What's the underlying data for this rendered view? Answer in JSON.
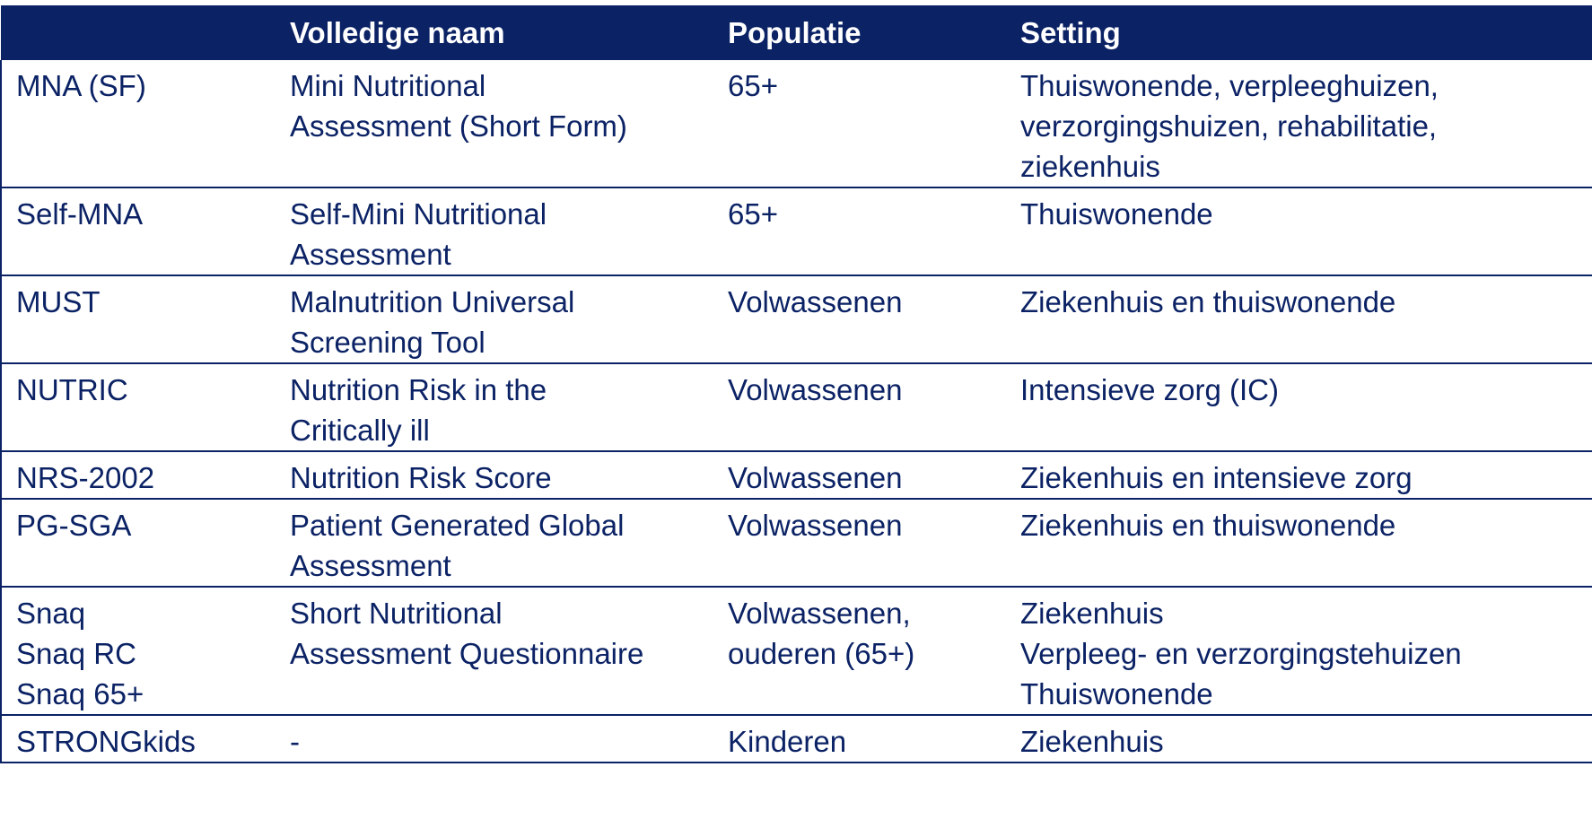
{
  "table": {
    "headers": [
      "",
      "Volledige naam",
      "Populatie",
      "Setting"
    ],
    "rows": [
      {
        "abbr": [
          "MNA (SF)"
        ],
        "name": [
          "Mini Nutritional",
          "Assessment (Short Form)"
        ],
        "population": [
          "65+"
        ],
        "setting": [
          "Thuiswonende, verpleeghuizen,",
          "verzorgingshuizen, rehabilitatie,",
          "ziekenhuis"
        ]
      },
      {
        "abbr": [
          "Self-MNA"
        ],
        "name": [
          "Self-Mini Nutritional",
          "Assessment"
        ],
        "population": [
          "65+"
        ],
        "setting": [
          "Thuiswonende"
        ]
      },
      {
        "abbr": [
          "MUST"
        ],
        "name": [
          "Malnutrition Universal",
          "Screening Tool"
        ],
        "population": [
          "Volwassenen"
        ],
        "setting": [
          "Ziekenhuis en thuiswonende"
        ]
      },
      {
        "abbr": [
          "NUTRIC"
        ],
        "name": [
          "Nutrition Risk in the",
          "Critically ill"
        ],
        "population": [
          "Volwassenen"
        ],
        "setting": [
          "Intensieve zorg (IC)"
        ]
      },
      {
        "abbr": [
          "NRS-2002"
        ],
        "name": [
          "Nutrition Risk Score"
        ],
        "population": [
          "Volwassenen"
        ],
        "setting": [
          "Ziekenhuis en intensieve zorg"
        ]
      },
      {
        "abbr": [
          "PG-SGA"
        ],
        "name": [
          "Patient Generated Global",
          "Assessment"
        ],
        "population": [
          "Volwassenen"
        ],
        "setting": [
          "Ziekenhuis en thuiswonende"
        ]
      },
      {
        "abbr": [
          "Snaq",
          "Snaq RC",
          "Snaq 65+"
        ],
        "name": [
          "Short Nutritional",
          "Assessment Questionnaire"
        ],
        "population": [
          "Volwassenen,",
          "ouderen (65+)"
        ],
        "setting": [
          "Ziekenhuis",
          "Verpleeg- en verzorgingstehuizen",
          "Thuiswonende"
        ]
      },
      {
        "abbr": [
          "STRONGkids"
        ],
        "name": [
          "-"
        ],
        "population": [
          "Kinderen"
        ],
        "setting": [
          "Ziekenhuis"
        ]
      }
    ]
  },
  "colors": {
    "header_bg": "#0b2265",
    "header_text": "#ffffff",
    "body_text": "#0b2265",
    "rule": "#0b2265"
  }
}
